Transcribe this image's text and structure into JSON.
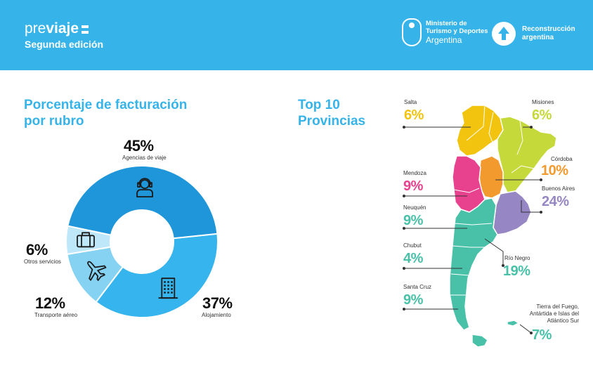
{
  "header": {
    "brand_pre": "pre",
    "brand_viaje": "viaje",
    "brand_sub": "Segunda edición",
    "ministry_line1": "Ministerio de",
    "ministry_line2": "Turismo y Deportes",
    "ministry_line3": "Argentina",
    "recon_line1": "Reconstrucción",
    "recon_line2": "argentina"
  },
  "left_title_line1": "Porcentaje de facturación",
  "left_title_line2": "por rubro",
  "right_title_line1": "Top 10",
  "right_title_line2": "Provincias",
  "chart_data": [
    {
      "type": "pie",
      "title": "Porcentaje de facturación por rubro",
      "categories": [
        "Agencias de viaje",
        "Alojamiento",
        "Transporte aéreo",
        "Otros servicios"
      ],
      "values": [
        45,
        37,
        12,
        6
      ],
      "value_labels": [
        "45%",
        "37%",
        "12%",
        "6%"
      ],
      "colors": [
        "#1e96d9",
        "#36b4ee",
        "#86d2f3",
        "#bfe7fa"
      ],
      "icons": [
        "agent-icon",
        "building-icon",
        "airplane-icon",
        "suitcase-icon"
      ]
    },
    {
      "type": "bar",
      "title": "Top 10 Provincias",
      "categories": [
        "Salta",
        "Misiones",
        "Córdoba",
        "Mendoza",
        "Buenos Aires",
        "Neuquén",
        "Chubut",
        "Río Negro",
        "Santa Cruz",
        "Tierra del Fuego, Antártida e Islas del Atlántico Sur"
      ],
      "values": [
        6,
        6,
        10,
        9,
        24,
        9,
        4,
        19,
        9,
        7
      ],
      "value_labels": [
        "6%",
        "6%",
        "10%",
        "9%",
        "24%",
        "9%",
        "4%",
        "19%",
        "9%",
        "7%"
      ],
      "colors": [
        "#f2c40f",
        "#c6d93a",
        "#f39a2e",
        "#e8428f",
        "#9686c4",
        "#48c1a8",
        "#48c1a8",
        "#48c1a8",
        "#48c1a8",
        "#48c1a8"
      ]
    }
  ],
  "provinces": [
    {
      "name": "Salta",
      "pct": "6%",
      "color": "#f2c40f"
    },
    {
      "name": "Misiones",
      "pct": "6%",
      "color": "#c6d93a"
    },
    {
      "name": "Córdoba",
      "pct": "10%",
      "color": "#f39a2e"
    },
    {
      "name": "Mendoza",
      "pct": "9%",
      "color": "#e8428f"
    },
    {
      "name": "Buenos Aires",
      "pct": "24%",
      "color": "#9686c4"
    },
    {
      "name": "Neuquén",
      "pct": "9%",
      "color": "#48c1a8"
    },
    {
      "name": "Chubut",
      "pct": "4%",
      "color": "#48c1a8"
    },
    {
      "name": "Río Negro",
      "pct": "19%",
      "color": "#48c1a8"
    },
    {
      "name": "Santa Cruz",
      "pct": "9%",
      "color": "#48c1a8"
    },
    {
      "name": "Tierra del Fuego, Antártida e Islas del Atlántico Sur",
      "pct": "7%",
      "color": "#48c1a8"
    }
  ]
}
